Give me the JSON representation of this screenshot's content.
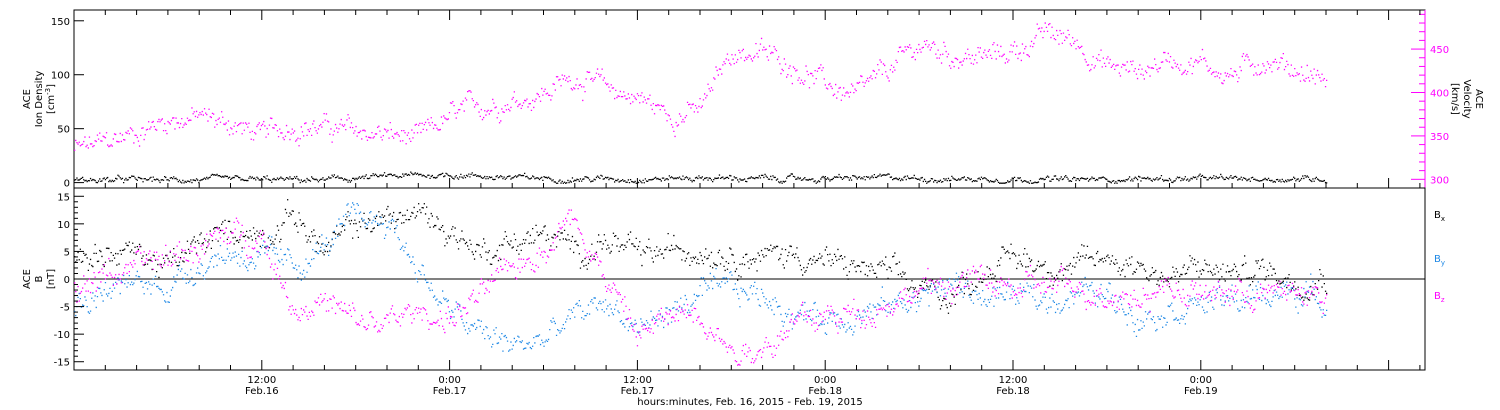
{
  "colors": {
    "black": "#000000",
    "magenta": "#ff00ff",
    "blue": "#1e88e5",
    "zero_line": "#000000"
  },
  "chart_data": [
    {
      "type": "scatter",
      "panel": "top",
      "ylabel_left": {
        "line1": "ACE",
        "line2": "Ion Density",
        "units": "[cm",
        "sup": "-3",
        "close": "]"
      },
      "ylabel_right": {
        "line1": "ACE",
        "line2": "Velocity",
        "units": "[km/s]"
      },
      "xlim_hours": [
        0,
        80
      ],
      "ylim_left": [
        -5,
        160
      ],
      "ylim_right": [
        290,
        495
      ],
      "ticks_left": [
        "0",
        "50",
        "100",
        "150"
      ],
      "tick_values_left": [
        0,
        50,
        100,
        150
      ],
      "ticks_right": [
        "300",
        "350",
        "400",
        "450"
      ],
      "tick_values_right": [
        300,
        350,
        400,
        450
      ],
      "series": [
        {
          "color": "magenta",
          "axis": "right",
          "x": [
            0,
            2,
            4,
            6,
            8,
            10,
            12,
            14,
            16,
            18,
            20,
            22,
            24,
            26,
            28,
            30,
            32,
            34,
            36,
            38,
            40,
            42,
            44,
            46,
            48,
            50,
            52,
            54,
            56,
            58,
            60,
            62,
            64,
            66,
            68,
            70,
            72,
            74,
            76,
            78,
            80
          ],
          "y": [
            335,
            342,
            355,
            370,
            372,
            365,
            350,
            364,
            360,
            355,
            352,
            345,
            372,
            385,
            393,
            400,
            420,
            405,
            395,
            375,
            380,
            448,
            445,
            432,
            410,
            395,
            425,
            455,
            445,
            440,
            448,
            468,
            460,
            430,
            425,
            440,
            435,
            420,
            440,
            428,
            415
          ]
        },
        {
          "color": "black",
          "axis": "left",
          "x": [
            0,
            4,
            8,
            12,
            16,
            20,
            24,
            28,
            32,
            36,
            40,
            44,
            48,
            52,
            56,
            60,
            64,
            68,
            72,
            76,
            80
          ],
          "y": [
            3,
            3,
            3,
            3,
            3,
            6,
            8,
            5,
            4,
            4,
            5,
            4,
            4,
            5,
            4,
            4,
            3,
            4,
            4,
            4,
            4
          ]
        }
      ]
    },
    {
      "type": "scatter",
      "panel": "bottom",
      "ylabel_left": {
        "line1": "ACE",
        "line2": "B",
        "units": "[nT]"
      },
      "xlim_hours": [
        0,
        80
      ],
      "ylim": [
        -16.5,
        16.5
      ],
      "ticks": [
        "15",
        "10",
        "5",
        "0",
        "-5",
        "-10",
        "-15"
      ],
      "tick_values": [
        15,
        10,
        5,
        0,
        -5,
        -10,
        -15
      ],
      "legend": [
        {
          "label": "B",
          "sub": "x",
          "color": "black"
        },
        {
          "label": "B",
          "sub": "y",
          "color": "blue"
        },
        {
          "label": "B",
          "sub": "z",
          "color": "magenta"
        }
      ],
      "series": [
        {
          "color": "black",
          "sub": "x",
          "x": [
            0,
            2,
            4,
            6,
            8,
            10,
            12,
            14,
            16,
            18,
            20,
            22,
            24,
            26,
            28,
            30,
            32,
            34,
            36,
            38,
            40,
            42,
            44,
            46,
            48,
            50,
            52,
            54,
            56,
            58,
            60,
            62,
            64,
            66,
            68,
            70,
            72,
            74,
            76,
            78,
            80
          ],
          "y": [
            4,
            5,
            5,
            2,
            6,
            9,
            8,
            12,
            5,
            10,
            11,
            12,
            9,
            5,
            7,
            8,
            5,
            7,
            4,
            5,
            6,
            5,
            4,
            5,
            3,
            2,
            1,
            -2,
            -3,
            2,
            4,
            3,
            2,
            4,
            3,
            0,
            2,
            1,
            2,
            0,
            1
          ]
        },
        {
          "color": "blue",
          "sub": "y",
          "x": [
            0,
            2,
            4,
            6,
            8,
            10,
            12,
            14,
            16,
            18,
            20,
            22,
            24,
            26,
            28,
            30,
            32,
            34,
            36,
            38,
            40,
            42,
            44,
            46,
            48,
            50,
            52,
            54,
            56,
            58,
            60,
            62,
            64,
            66,
            68,
            70,
            72,
            74,
            76,
            78,
            80
          ],
          "y": [
            -5,
            -2,
            -1,
            -1,
            3,
            5,
            4,
            2,
            6,
            11,
            11,
            2,
            -6,
            -10,
            -12,
            -11,
            -7,
            -4,
            -9,
            -6,
            -3,
            -2,
            -3,
            -6,
            -7,
            -6,
            -5,
            -3,
            -1,
            -3,
            -3,
            -4,
            -2,
            -3,
            -6,
            -5,
            -4,
            -4,
            -3,
            -2,
            -4
          ]
        },
        {
          "color": "magenta",
          "sub": "z",
          "x": [
            0,
            2,
            4,
            6,
            8,
            10,
            12,
            14,
            16,
            18,
            20,
            22,
            24,
            26,
            28,
            30,
            32,
            34,
            36,
            38,
            40,
            42,
            44,
            46,
            48,
            50,
            52,
            54,
            56,
            58,
            60,
            62,
            64,
            66,
            68,
            70,
            72,
            74,
            76,
            78,
            80
          ],
          "y": [
            -2,
            1,
            2,
            4,
            6,
            8,
            8,
            -5,
            -4,
            -8,
            -8,
            -6,
            -7,
            -3,
            2,
            6,
            12,
            0,
            -10,
            -7,
            -5,
            -13,
            -12,
            -8,
            -7,
            -6,
            -4,
            -2,
            -1,
            0,
            -2,
            -1,
            -2,
            -2,
            -3,
            -1,
            -3,
            -2,
            -3,
            -2,
            -3
          ]
        }
      ]
    }
  ],
  "x_axis": {
    "ticks": [
      {
        "hour": 12,
        "time": "12:00",
        "date": "Feb.16"
      },
      {
        "hour": 24,
        "time": "0:00",
        "date": "Feb.17"
      },
      {
        "hour": 36,
        "time": "12:00",
        "date": "Feb.17"
      },
      {
        "hour": 48,
        "time": "0:00",
        "date": "Feb.18"
      },
      {
        "hour": 60,
        "time": "12:00",
        "date": "Feb.18"
      },
      {
        "hour": 72,
        "time": "0:00",
        "date": "Feb.19"
      }
    ],
    "label": "hours:minutes, Feb. 16, 2015 - Feb. 19, 2015"
  }
}
